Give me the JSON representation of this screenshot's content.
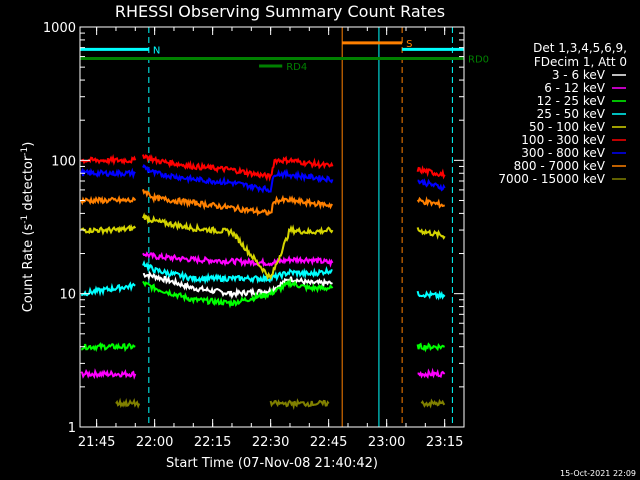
{
  "chart_data": {
    "type": "line",
    "title": "RHESSI Observing Summary Count Rates",
    "xlabel": "Start Time (07-Nov-08 21:40:42)",
    "ylabel": "Count Rate (s⁻¹ detector⁻¹)",
    "ylabel_main": "Count Rate (s",
    "ylabel_sup1": "-1",
    "ylabel_mid": " detector",
    "ylabel_sup2": "-1",
    "ylabel_end": ")",
    "yscale": "log",
    "ylim": [
      1,
      1000
    ],
    "xlim": [
      "21:40:42",
      "23:20:00"
    ],
    "x_ticks": [
      "21:45",
      "22:00",
      "22:15",
      "22:30",
      "22:45",
      "23:00",
      "23:15"
    ],
    "y_ticks": [
      {
        "v": 1,
        "label": "1"
      },
      {
        "v": 10,
        "label": "10"
      },
      {
        "v": 100,
        "label": "100"
      },
      {
        "v": 1000,
        "label": "1000"
      }
    ],
    "timestamp": "15-Oct-2021 22:09",
    "legend_header": [
      "Det 1,3,4,5,6,9,",
      "FDecim 1, Att 0"
    ],
    "legend_position": "right",
    "series": [
      {
        "name": "3 - 6 keV",
        "color": "#ffffff",
        "segments": [
          {
            "x": [
              21.94,
              22.0,
              22.1,
              22.2,
              22.3,
              22.4,
              22.5
            ],
            "y": [
              null,
              null,
              null,
              null,
              null,
              null,
              null
            ]
          },
          {
            "x": [
              "21:57",
              "22:00",
              "22:10",
              "22:20",
              "22:30",
              "22:35",
              "22:40",
              "22:46"
            ],
            "y": [
              14,
              13.5,
              11,
              10,
              10.5,
              13,
              12,
              12
            ]
          }
        ]
      },
      {
        "name": "6 - 12 keV",
        "color": "#ff00ff",
        "segments": [
          {
            "x": [
              "21:41",
              "21:55"
            ],
            "y": [
              2.5,
              2.5
            ]
          },
          {
            "x": [
              "21:57",
              "22:00",
              "22:10",
              "22:20",
              "22:30",
              "22:35",
              "22:40",
              "22:46"
            ],
            "y": [
              20,
              19,
              18,
              17.5,
              17,
              18,
              18,
              17
            ]
          },
          {
            "x": [
              "23:08",
              "23:15"
            ],
            "y": [
              2.5,
              2.5
            ]
          }
        ]
      },
      {
        "name": "12 - 25 keV",
        "color": "#00ff00",
        "segments": [
          {
            "x": [
              "21:41",
              "21:55"
            ],
            "y": [
              4,
              4
            ]
          },
          {
            "x": [
              "21:57",
              "22:00",
              "22:10",
              "22:20",
              "22:30",
              "22:35",
              "22:40",
              "22:46"
            ],
            "y": [
              12,
              11,
              9,
              8.5,
              10,
              12,
              11,
              11
            ]
          },
          {
            "x": [
              "23:08",
              "23:15"
            ],
            "y": [
              4,
              4
            ]
          }
        ]
      },
      {
        "name": "25 - 50 keV",
        "color": "#00ffff",
        "segments": [
          {
            "x": [
              "21:41",
              "21:50",
              "21:55"
            ],
            "y": [
              10,
              11,
              11.5
            ]
          },
          {
            "x": [
              "21:57",
              "22:00",
              "22:10",
              "22:20",
              "22:30",
              "22:35",
              "22:40",
              "22:46"
            ],
            "y": [
              17,
              15,
              13,
              13,
              13,
              14.5,
              14,
              15
            ]
          },
          {
            "x": [
              "23:08",
              "23:15"
            ],
            "y": [
              10,
              9.5
            ]
          }
        ]
      },
      {
        "name": "50 - 100 keV",
        "color": "#d4d400",
        "segments": [
          {
            "x": [
              "21:41",
              "21:50",
              "21:55"
            ],
            "y": [
              30,
              30,
              31
            ]
          },
          {
            "x": [
              "21:57",
              "22:00",
              "22:10",
              "22:20",
              "22:30",
              "22:35",
              "22:40",
              "22:46"
            ],
            "y": [
              38,
              35,
              31,
              29,
              13,
              30,
              29,
              30
            ]
          },
          {
            "x": [
              "23:08",
              "23:15"
            ],
            "y": [
              30,
              27
            ]
          }
        ]
      },
      {
        "name": "100 - 300 keV",
        "color": "#ff0000",
        "segments": [
          {
            "x": [
              "21:41",
              "21:50",
              "21:55"
            ],
            "y": [
              100,
              100,
              100
            ]
          },
          {
            "x": [
              "21:57",
              "22:00",
              "22:10",
              "22:20",
              "22:30",
              "22:31",
              "22:35",
              "22:40",
              "22:46"
            ],
            "y": [
              110,
              100,
              90,
              85,
              75,
              100,
              100,
              95,
              90
            ]
          },
          {
            "x": [
              "23:08",
              "23:15"
            ],
            "y": [
              85,
              78
            ]
          }
        ]
      },
      {
        "name": "300 - 800 keV",
        "color": "#0000ff",
        "segments": [
          {
            "x": [
              "21:41",
              "21:50",
              "21:55"
            ],
            "y": [
              80,
              80,
              80
            ]
          },
          {
            "x": [
              "21:57",
              "22:00",
              "22:10",
              "22:20",
              "22:30",
              "22:31",
              "22:35",
              "22:40",
              "22:46"
            ],
            "y": [
              90,
              80,
              72,
              68,
              60,
              80,
              78,
              75,
              72
            ]
          },
          {
            "x": [
              "23:08",
              "23:15"
            ],
            "y": [
              70,
              62
            ]
          }
        ]
      },
      {
        "name": "800 - 7000 keV",
        "color": "#ff8000",
        "segments": [
          {
            "x": [
              "21:41",
              "21:50",
              "21:55"
            ],
            "y": [
              50,
              50,
              50
            ]
          },
          {
            "x": [
              "21:57",
              "22:00",
              "22:10",
              "22:20",
              "22:30",
              "22:31",
              "22:35",
              "22:40",
              "22:46"
            ],
            "y": [
              60,
              52,
              48,
              44,
              40,
              50,
              50,
              48,
              46
            ]
          },
          {
            "x": [
              "23:08",
              "23:15"
            ],
            "y": [
              50,
              46
            ]
          }
        ]
      },
      {
        "name": "7000 - 15000 keV",
        "color": "#808000",
        "segments": [
          {
            "x": [
              "21:50",
              "21:56"
            ],
            "y": [
              1.5,
              1.5
            ]
          },
          {
            "x": [
              "22:30",
              "22:45"
            ],
            "y": [
              1.5,
              1.5
            ]
          },
          {
            "x": [
              "23:09",
              "23:15"
            ],
            "y": [
              1.5,
              1.5
            ]
          }
        ]
      }
    ],
    "flags": [
      {
        "label": "N",
        "color": "#00ffff",
        "y": 680,
        "from": "21:40:42",
        "to": "21:58:30"
      },
      {
        "label": "",
        "color": "#00ffff",
        "y": 680,
        "from": "23:04",
        "to": "23:20"
      },
      {
        "label": "S",
        "color": "#ff8000",
        "y": 760,
        "from": "22:48:30",
        "to": "23:04"
      },
      {
        "label": "RD0",
        "color": "#008000",
        "y": 580,
        "from": "21:40:42",
        "to": "23:20"
      },
      {
        "label": "RD4",
        "color": "#008000",
        "y": 510,
        "from": "22:27",
        "to": "22:33"
      }
    ],
    "vlines": [
      {
        "x": "21:58:30",
        "color": "#00ffff",
        "dashed": true
      },
      {
        "x": "22:48:30",
        "color": "#ff8000",
        "dashed": false
      },
      {
        "x": "22:58",
        "color": "#00ffff",
        "dashed": false
      },
      {
        "x": "23:04",
        "color": "#ff8000",
        "dashed": true
      },
      {
        "x": "23:17",
        "color": "#00ffff",
        "dashed": true
      }
    ]
  }
}
